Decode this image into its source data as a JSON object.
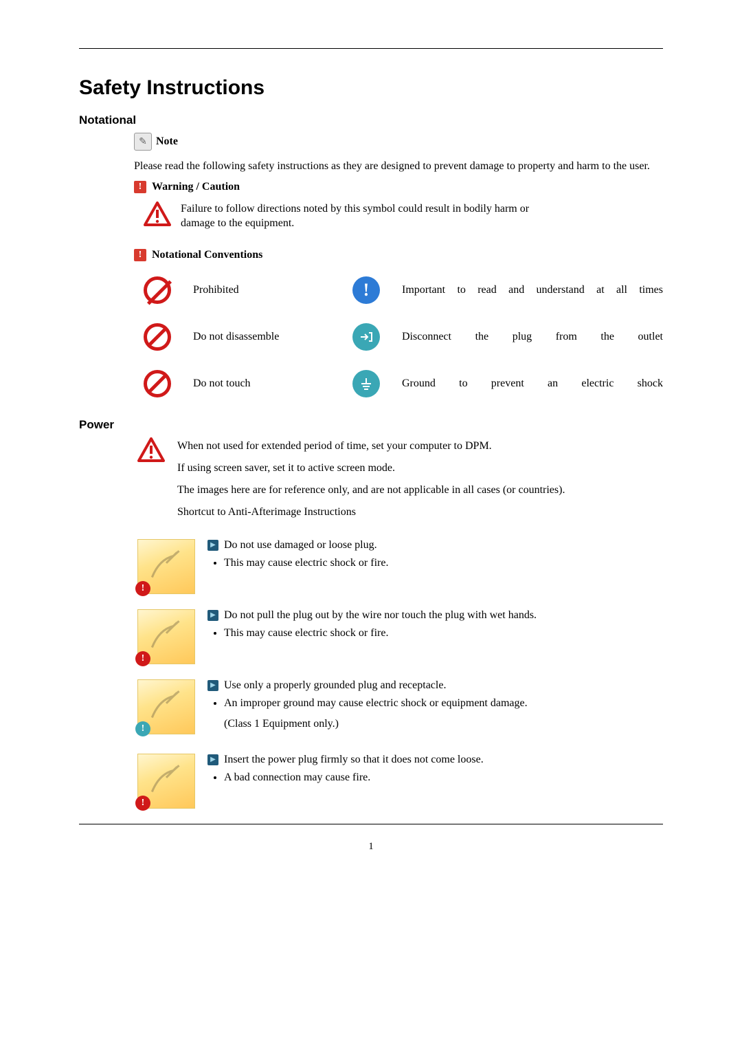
{
  "page": {
    "title": "Safety Instructions",
    "section_notational": "Notational",
    "note_label": "Note",
    "intro": "Please read the following safety instructions as they are designed to prevent damage to property and harm to the user.",
    "warn_caution_label": "Warning / Caution",
    "warn_caution_text": "Failure to follow directions noted by this symbol could result in bodily harm or damage to the equipment.",
    "notational_conv_label": "Notational Conventions",
    "conventions": {
      "prohibited": "Prohibited",
      "important": "Important to read and understand at all times",
      "disassemble": "Do not disassemble",
      "disconnect": "Disconnect the plug from the outlet",
      "touch": "Do not touch",
      "ground": "Ground to prevent an electric shock"
    },
    "section_power": "Power",
    "power_intro": {
      "l1": "When not used for extended period of time, set your computer to DPM.",
      "l2": "If using screen saver, set it to active screen mode.",
      "l3": "The images here are for reference only, and are not applicable in all cases (or countries).",
      "l4": "Shortcut to Anti-Afterimage Instructions"
    },
    "items": [
      {
        "title": "Do not use damaged or loose plug.",
        "subs": [
          "This may cause electric shock or fire."
        ],
        "badge": "red"
      },
      {
        "title": "Do not pull the plug out by the wire nor touch the plug with wet hands.",
        "subs": [
          "This may cause electric shock or fire."
        ],
        "badge": "red"
      },
      {
        "title": "Use only a properly grounded plug and receptacle.",
        "subs": [
          "An improper ground may cause electric shock or equipment damage.",
          "(Class 1 Equipment only.)"
        ],
        "badge": "teal"
      },
      {
        "title": "Insert the power plug firmly so that it does not come loose.",
        "subs": [
          "A bad connection may cause fire."
        ],
        "badge": "red"
      }
    ],
    "page_number": "1"
  },
  "colors": {
    "rule": "#000000",
    "red": "#d01919",
    "red_bang": "#d83a2e",
    "blue": "#2d7bd6",
    "teal": "#3aa7b5",
    "arrow_bg": "#205a7a",
    "thumb_bg1": "#fff6d0",
    "thumb_bg2": "#ffc85a"
  },
  "typography": {
    "title_fontsize": 30,
    "section_fontsize": 17,
    "body_fontsize": 16,
    "title_family": "Arial",
    "body_family": "Times New Roman"
  }
}
